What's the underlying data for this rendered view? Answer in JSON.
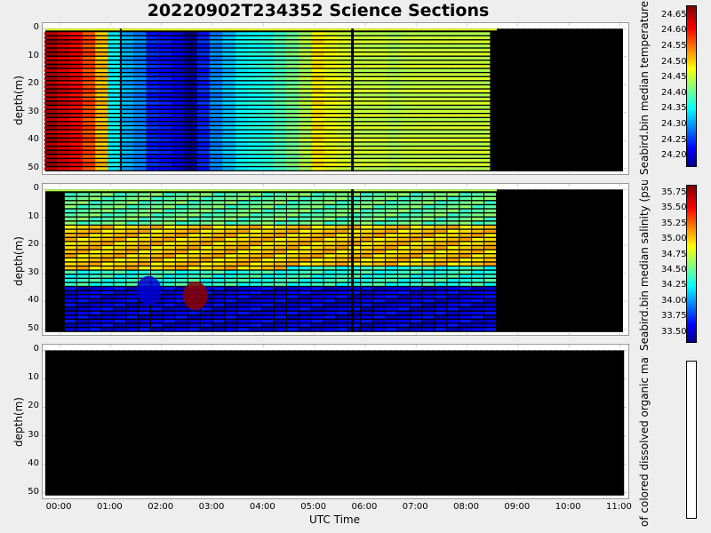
{
  "title": "20220902T234352 Science Sections",
  "x_axis": {
    "label": "UTC Time",
    "ticks": [
      "00:00",
      "01:00",
      "02:00",
      "03:00",
      "04:00",
      "05:00",
      "06:00",
      "07:00",
      "08:00",
      "09:00",
      "10:00",
      "11:00"
    ]
  },
  "chart_data": [
    {
      "type": "heatmap",
      "name": "temperature",
      "ylabel": "depth(m)",
      "yticks": [
        "0",
        "10",
        "20",
        "30",
        "40",
        "50"
      ],
      "colorbar_label": "Seabird.bin median temperature (degC)",
      "colorbar_ticks": [
        "24.65",
        "24.60",
        "24.55",
        "24.50",
        "24.45",
        "24.40",
        "24.35",
        "24.30",
        "24.25",
        "24.20"
      ],
      "clim": [
        24.17,
        24.68
      ],
      "xlim": [
        "23:40",
        "11:10"
      ],
      "ylim": [
        52,
        -2
      ],
      "data_extent_x": [
        "23:43",
        "08:35"
      ],
      "data_extent_y": [
        0,
        51
      ],
      "profile_times": [
        "23:50",
        "00:05",
        "00:20",
        "00:35",
        "00:50",
        "01:05",
        "01:20",
        "01:35",
        "01:50",
        "02:05",
        "02:20",
        "02:35",
        "02:50",
        "03:05",
        "03:20",
        "03:35",
        "03:50",
        "04:05",
        "04:20",
        "04:35",
        "04:50",
        "05:05",
        "05:20",
        "05:35",
        "05:50",
        "06:05",
        "06:20",
        "06:35",
        "06:50",
        "07:05",
        "07:20",
        "07:35",
        "07:50",
        "08:05",
        "08:20"
      ],
      "profile_values": [
        24.66,
        24.64,
        24.62,
        24.58,
        24.52,
        24.36,
        24.32,
        24.3,
        24.25,
        24.24,
        24.22,
        24.18,
        24.25,
        24.3,
        24.33,
        24.36,
        24.37,
        24.38,
        24.4,
        24.42,
        24.45,
        24.5,
        24.48,
        24.47,
        24.46,
        24.46,
        24.46,
        24.45,
        24.46,
        24.46,
        24.46,
        24.46,
        24.46,
        24.46,
        24.46
      ]
    },
    {
      "type": "heatmap",
      "name": "salinity",
      "ylabel": "depth(m)",
      "yticks": [
        "0",
        "10",
        "20",
        "30",
        "40",
        "50"
      ],
      "colorbar_label": "Seabird.bin median salinity (psu)",
      "colorbar_ticks": [
        "35.75",
        "35.50",
        "35.25",
        "35.00",
        "34.75",
        "34.50",
        "34.25",
        "34.00",
        "33.75",
        "33.50"
      ],
      "clim": [
        33.35,
        35.88
      ],
      "xlim": [
        "23:40",
        "11:10"
      ],
      "ylim": [
        52,
        -2
      ],
      "data_extent_x": [
        "23:43",
        "08:35"
      ],
      "data_extent_y": [
        0,
        51
      ],
      "depth_layers": [
        {
          "depth_range": [
            0,
            12
          ],
          "value": 34.55
        },
        {
          "depth_range": [
            12,
            28
          ],
          "value": 35.05
        },
        {
          "depth_range": [
            28,
            34
          ],
          "value": 34.4
        },
        {
          "depth_range": [
            34,
            51
          ],
          "value": 33.6
        }
      ],
      "annotations": [
        {
          "label": "high-salinity patch",
          "time": "02:40",
          "depth": 38,
          "value": 35.85
        },
        {
          "label": "low-salinity lens",
          "time": "01:45",
          "depth": 36,
          "value": 33.55
        }
      ]
    },
    {
      "type": "heatmap",
      "name": "cdom",
      "ylabel": "depth(m)",
      "yticks": [
        "0",
        "10",
        "20",
        "30",
        "40",
        "50"
      ],
      "colorbar_label": "of colored dissolved organic matter (p",
      "colorbar_ticks": [],
      "xlim": [
        "23:40",
        "11:10"
      ],
      "ylim": [
        52,
        -2
      ],
      "data_extent_x": [
        "23:43",
        "11:05"
      ],
      "data_extent_y": [
        0,
        51
      ],
      "values": "none"
    }
  ]
}
